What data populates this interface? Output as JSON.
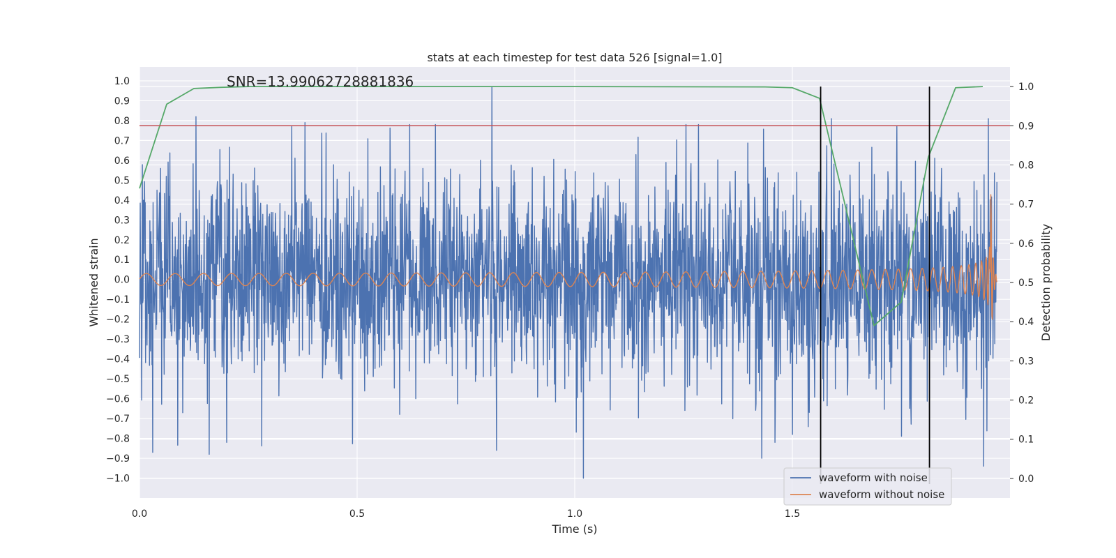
{
  "chart_data": {
    "type": "line",
    "title": "stats at each timestep for test data 526 [signal=1.0]",
    "annotation": "SNR=13.99062728881836",
    "xlabel": "Time (s)",
    "ylabel_left": "Whitened strain",
    "ylabel_right": "Detection probability",
    "xlim": [
      0.0,
      2.0
    ],
    "ylim_left": [
      -1.1,
      1.07
    ],
    "ylim_right": [
      -0.05,
      1.05
    ],
    "x_ticks": [
      "0.0",
      "0.5",
      "1.0",
      "1.5"
    ],
    "x_tick_values": [
      0.0,
      0.5,
      1.0,
      1.5
    ],
    "y_left_ticks": [
      "1.0",
      "0.9",
      "0.8",
      "0.7",
      "0.6",
      "0.5",
      "0.4",
      "0.3",
      "0.2",
      "0.1",
      "0.0",
      "−0.1",
      "−0.2",
      "−0.3",
      "−0.4",
      "−0.5",
      "−0.6",
      "−0.7",
      "−0.8",
      "−0.9",
      "−1.0"
    ],
    "y_left_tick_values": [
      1.0,
      0.9,
      0.8,
      0.7,
      0.6,
      0.5,
      0.4,
      0.3,
      0.2,
      0.1,
      0.0,
      -0.1,
      -0.2,
      -0.3,
      -0.4,
      -0.5,
      -0.6,
      -0.7,
      -0.8,
      -0.9,
      -1.0
    ],
    "y_right_ticks": [
      "1.0",
      "0.9",
      "0.8",
      "0.7",
      "0.6",
      "0.5",
      "0.4",
      "0.3",
      "0.2",
      "0.1",
      "0.0"
    ],
    "y_right_tick_values": [
      1.0,
      0.9,
      0.8,
      0.7,
      0.6,
      0.5,
      0.4,
      0.3,
      0.2,
      0.1,
      0.0
    ],
    "threshold": {
      "axis": "right",
      "value": 0.9,
      "color": "#c44e52"
    },
    "vertical_markers": {
      "x": [
        1.565,
        1.815
      ],
      "color": "#000000"
    },
    "series": [
      {
        "name": "waveform with noise",
        "axis": "left",
        "color": "#4c72b0",
        "generator": {
          "kind": "noise",
          "samples": 2400,
          "sigma": 0.26,
          "seed": 526
        },
        "spikes": [
          {
            "x": 0.13,
            "y": 0.82
          },
          {
            "x": 0.81,
            "y": 0.97
          },
          {
            "x": 0.35,
            "y": 0.77
          },
          {
            "x": 0.38,
            "y": 0.79
          },
          {
            "x": 0.68,
            "y": 0.78
          },
          {
            "x": 1.74,
            "y": 0.77
          },
          {
            "x": 1.59,
            "y": 0.81
          },
          {
            "x": 1.95,
            "y": 0.81
          },
          {
            "x": 1.02,
            "y": -1.0
          },
          {
            "x": 0.16,
            "y": -0.88
          },
          {
            "x": 0.03,
            "y": -0.87
          },
          {
            "x": 0.82,
            "y": -0.86
          },
          {
            "x": 0.2,
            "y": -0.82
          },
          {
            "x": 1.43,
            "y": -0.9
          },
          {
            "x": 1.94,
            "y": -0.94
          },
          {
            "x": 1.5,
            "y": -0.78
          },
          {
            "x": 1.46,
            "y": -0.82
          }
        ]
      },
      {
        "name": "waveform without noise",
        "axis": "left",
        "color": "#dd8452",
        "generator": {
          "kind": "chirp",
          "samples": 2400,
          "amp0": 0.03,
          "f0": 15,
          "tc": 1.955,
          "merger_amp": 0.6
        }
      },
      {
        "name": "detection probability",
        "axis": "right",
        "color": "#55a868",
        "legend": false,
        "x": [
          0.0,
          0.0625,
          0.125,
          0.1875,
          0.25,
          0.3125,
          0.375,
          0.4375,
          0.5,
          1.0,
          1.4375,
          1.5,
          1.5625,
          1.6875,
          1.75,
          1.8125,
          1.875,
          1.9375
        ],
        "y": [
          0.74,
          0.955,
          0.995,
          0.998,
          1.0,
          1.0,
          1.0,
          1.0,
          1.0,
          1.0,
          0.999,
          0.997,
          0.97,
          0.39,
          0.45,
          0.82,
          0.997,
          1.0
        ]
      }
    ],
    "legend": [
      "waveform with noise",
      "waveform without noise"
    ],
    "legend_position": "lower-right",
    "style": {
      "facecolor": "#eaeaf2",
      "gridcolor": "#ffffff"
    }
  }
}
